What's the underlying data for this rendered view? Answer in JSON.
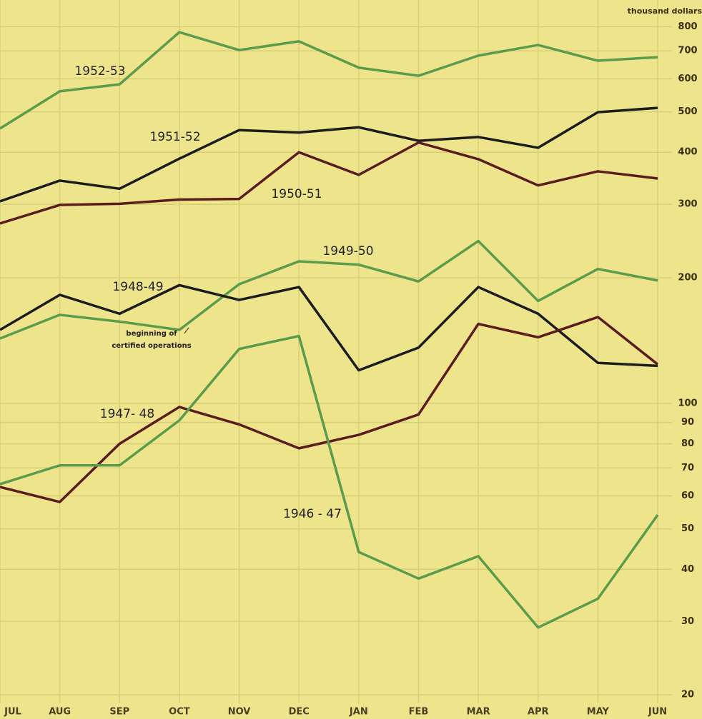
{
  "chart_data": {
    "type": "line",
    "y_axis_label": "thousand dollars",
    "log_scale": true,
    "grid": true,
    "categories": [
      "JUL",
      "AUG",
      "SEP",
      "OCT",
      "NOV",
      "DEC",
      "JAN",
      "FEB",
      "MAR",
      "APR",
      "MAY",
      "JUN"
    ],
    "ylim": [
      17.5,
      927
    ],
    "yticks": [
      20,
      30,
      40,
      50,
      60,
      70,
      80,
      90,
      100,
      200,
      300,
      400,
      500,
      600,
      700,
      800
    ],
    "series": [
      {
        "name": "1952-53",
        "color": "#5a9c4c",
        "values": [
          456,
          560,
          582,
          776,
          703,
          738,
          638,
          610,
          682,
          723,
          663,
          676
        ]
      },
      {
        "name": "1951-52",
        "color": "#1c1c1c",
        "values": [
          305,
          342,
          327,
          386,
          452,
          446,
          459,
          426,
          435,
          410,
          499,
          511
        ]
      },
      {
        "name": "1950-51",
        "color": "#5a1c1c",
        "values": [
          270,
          299,
          301,
          308,
          309,
          400,
          353,
          422,
          385,
          333,
          360,
          346
        ]
      },
      {
        "name": "1949-50",
        "color": "#5a9c4c",
        "values": [
          143,
          163,
          157,
          150,
          193,
          219,
          215,
          196,
          245,
          176,
          210,
          197
        ]
      },
      {
        "name": "1948-49",
        "color": "#1c1c1c",
        "values": [
          150,
          182,
          164,
          192,
          177,
          190,
          120,
          136,
          190,
          164,
          125,
          123
        ]
      },
      {
        "name": "1947- 48",
        "color": "#5a1c1c",
        "values": [
          63,
          58,
          80,
          98,
          89,
          78,
          84,
          94,
          155,
          144,
          161,
          124
        ]
      },
      {
        "name": "1946 - 47",
        "color": "#5a9c4c",
        "values": [
          64,
          71,
          71,
          91,
          135,
          145,
          44,
          38,
          43,
          29,
          34,
          54
        ]
      }
    ],
    "annotation": [
      "beginning of",
      "certified operations"
    ]
  }
}
